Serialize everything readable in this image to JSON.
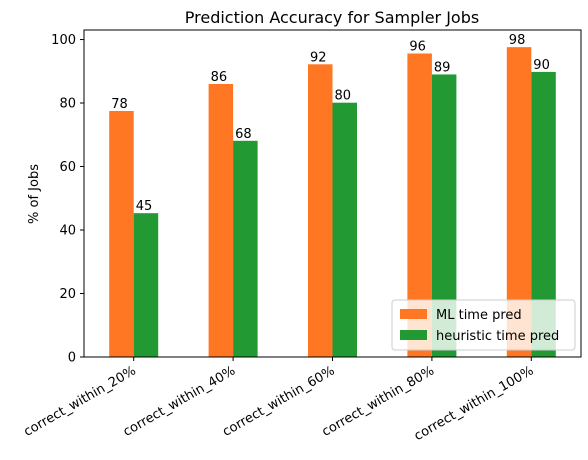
{
  "chart_data": {
    "type": "bar",
    "title": "Prediction Accuracy for Sampler Jobs",
    "xlabel": "",
    "ylabel": "% of Jobs",
    "categories": [
      "correct_within_20%",
      "correct_within_40%",
      "correct_within_60%",
      "correct_within_80%",
      "correct_within_100%"
    ],
    "series": [
      {
        "name": "ML time pred",
        "color": "#ff7722",
        "values": [
          77.5,
          86.0,
          92.2,
          95.6,
          97.6
        ],
        "labels": [
          "78",
          "86",
          "92",
          "96",
          "98"
        ]
      },
      {
        "name": "heuristic time pred",
        "color": "#229933",
        "values": [
          45.3,
          68.1,
          80.1,
          89.0,
          89.8
        ],
        "labels": [
          "45",
          "68",
          "80",
          "89",
          "90"
        ]
      }
    ],
    "ylim": [
      0,
      103
    ],
    "yticks": [
      0,
      20,
      40,
      60,
      80,
      100
    ],
    "grid": false,
    "legend": "lower-right"
  }
}
